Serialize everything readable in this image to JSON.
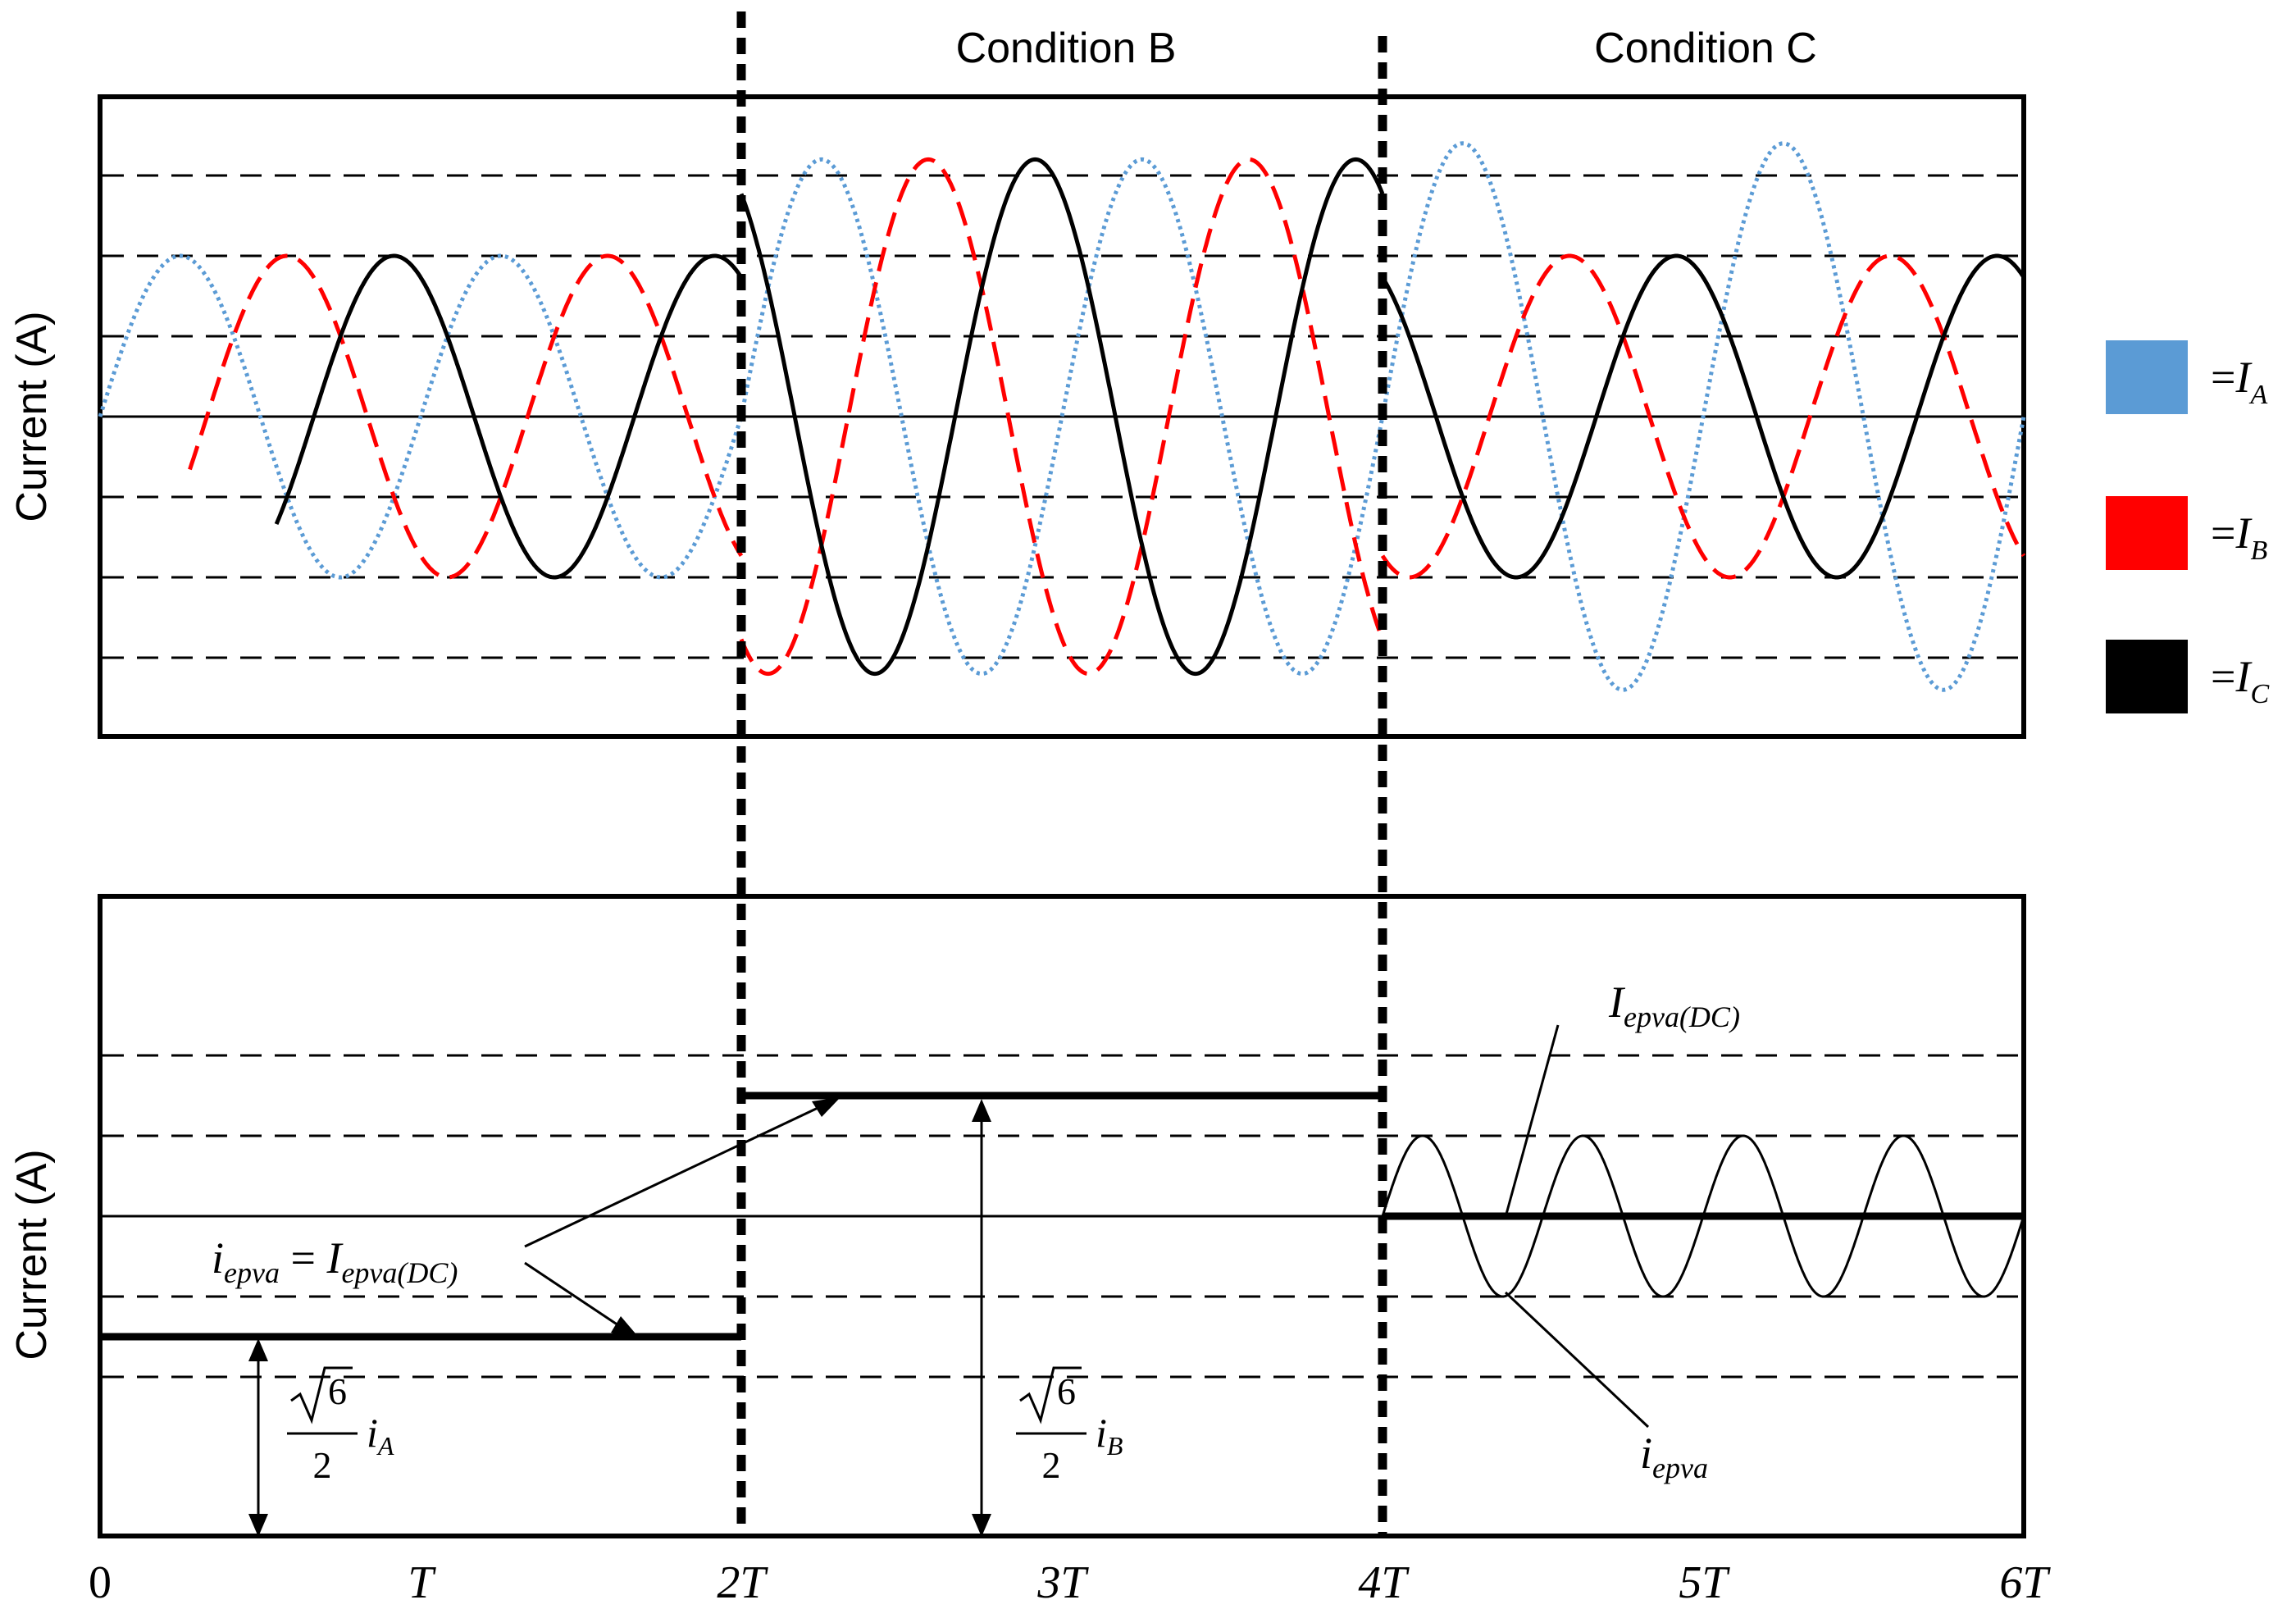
{
  "chart_data": [
    {
      "type": "line",
      "panel": "top",
      "ylabel": "Current (A)",
      "condition_labels": [
        "Condition B",
        "Condition C"
      ],
      "legend": [
        {
          "key": "A",
          "eq": "=",
          "sym": "I",
          "sub": "A",
          "color": "#5b9bd5",
          "style": "dotted"
        },
        {
          "key": "B",
          "eq": "=",
          "sym": "I",
          "sub": "B",
          "color": "#ff0000",
          "style": "dashed"
        },
        {
          "key": "C",
          "eq": "=",
          "sym": "I",
          "sub": "C",
          "color": "#000000",
          "style": "solid"
        }
      ],
      "xlim": [
        0,
        6
      ],
      "ylim": [
        -4,
        4
      ],
      "grid_y": [
        -3,
        -2,
        -1,
        1,
        2,
        3
      ],
      "zero_line": 0,
      "segments": [
        {
          "x_range": [
            0,
            2
          ],
          "amplitudes": {
            "A": 2,
            "B": 2,
            "C": 2
          }
        },
        {
          "x_range": [
            2,
            4
          ],
          "amplitudes": {
            "A": 3.2,
            "B": 3.2,
            "C": 3.2
          }
        },
        {
          "x_range": [
            4,
            6
          ],
          "amplitudes": {
            "A": 3.4,
            "B": 2,
            "C": 2
          }
        }
      ],
      "series": [
        {
          "name": "I_A",
          "phase_deg": 0
        },
        {
          "name": "I_B",
          "phase_deg": -120
        },
        {
          "name": "I_C",
          "phase_deg": 120
        }
      ],
      "period": 1,
      "x_start": [
        0,
        0.28,
        0.55
      ]
    },
    {
      "type": "line",
      "panel": "bottom",
      "ylabel": "Current (A)",
      "xlim": [
        0,
        6
      ],
      "ylim": [
        -4,
        4
      ],
      "grid_y": [
        -2,
        -1,
        1,
        2
      ],
      "zero_line": 0,
      "x_ticks": [
        "0",
        "T",
        "2T",
        "3T",
        "4T",
        "5T",
        "6T"
      ],
      "dc_levels": [
        {
          "x_range": [
            0,
            2
          ],
          "value": -1.5
        },
        {
          "x_range": [
            2,
            4
          ],
          "value": 1.5
        },
        {
          "x_range": [
            4,
            6
          ],
          "value": 0
        }
      ],
      "ripple": {
        "x_range": [
          4,
          6
        ],
        "amplitude": 1,
        "period": 0.5
      },
      "annotations": {
        "eq_lhs": "i",
        "eq_lhs_sub": "epva",
        "eq_sign": " = ",
        "eq_rhs": "I",
        "eq_rhs_sub": "epva(DC)",
        "dc_label": "I",
        "dc_label_sub": "epva(DC)",
        "ac_label": "i",
        "ac_label_sub": "epva",
        "formula_num": "6",
        "formula_den": "2",
        "formula_var": "i",
        "formula_a_sub": "A",
        "formula_b_sub": "B"
      }
    }
  ]
}
